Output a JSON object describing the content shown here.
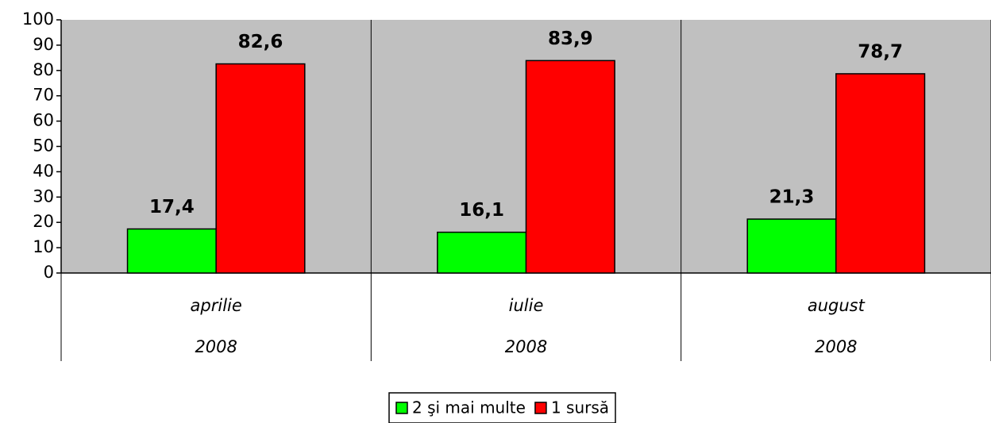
{
  "chart_data": {
    "type": "bar",
    "categories": [
      "aprilie",
      "iulie",
      "august"
    ],
    "years": [
      "2008",
      "2008",
      "2008"
    ],
    "series": [
      {
        "name": "2 şi mai multe",
        "color": "#00ff00",
        "values": [
          17.4,
          16.1,
          21.3
        ],
        "value_labels": [
          "17,4",
          "16,1",
          "21,3"
        ]
      },
      {
        "name": "1 sursă",
        "color": "#ff0000",
        "values": [
          82.6,
          83.9,
          78.7
        ],
        "value_labels": [
          "82,6",
          "83,9",
          "78,7"
        ]
      }
    ],
    "ylim": [
      0,
      100
    ],
    "yticks": [
      0,
      10,
      20,
      30,
      40,
      50,
      60,
      70,
      80,
      90,
      100
    ],
    "plot_background": "#c0c0c0"
  }
}
